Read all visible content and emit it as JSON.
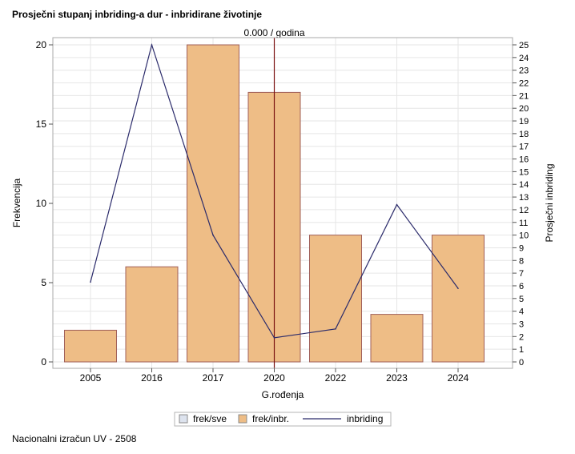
{
  "title": "Prosječni stupanj inbriding-a dur - inbridirane životinje",
  "footer": "Nacionalni izračun UV - 2508",
  "chart_data": {
    "type": "bar",
    "categories": [
      "2005",
      "2016",
      "2017",
      "2020",
      "2022",
      "2023",
      "2024"
    ],
    "series": [
      {
        "name": "frek/inbr.",
        "type": "bar",
        "axis": "left",
        "values": [
          2,
          6,
          20,
          17,
          8,
          3,
          8
        ]
      },
      {
        "name": "inbriding",
        "type": "line",
        "axis": "right",
        "values": [
          6.3,
          25,
          10,
          1.9,
          2.6,
          12.4,
          5.8
        ]
      }
    ],
    "xlabel": "G.rođenja",
    "ylabel": "Frekvencija",
    "y2label": "Prosječni inbriding",
    "ylim": [
      0,
      20
    ],
    "y2lim": [
      0,
      25
    ],
    "yticks": [
      0,
      5,
      10,
      15,
      20
    ],
    "y2ticks": [
      0,
      1,
      2,
      3,
      4,
      5,
      6,
      7,
      8,
      9,
      10,
      11,
      12,
      13,
      14,
      15,
      16,
      17,
      18,
      19,
      20,
      21,
      22,
      23,
      24,
      25
    ],
    "reference_line": {
      "category": "2020",
      "label": "0.000 / godina",
      "color": "#7a1010"
    },
    "legend": {
      "placement": "bottom",
      "items": [
        {
          "label": "frek/sve",
          "kind": "box",
          "color": "#dde3ee"
        },
        {
          "label": "frek/inbr.",
          "kind": "box",
          "color": "#eebd86"
        },
        {
          "label": "inbriding",
          "kind": "line",
          "color": "#2b2b6b"
        }
      ]
    },
    "grid": true,
    "colors": {
      "bar_fill": "#eebd86",
      "bar_stroke": "#a0605a",
      "line": "#2b2b6b",
      "grid": "#e6e6e6"
    }
  }
}
